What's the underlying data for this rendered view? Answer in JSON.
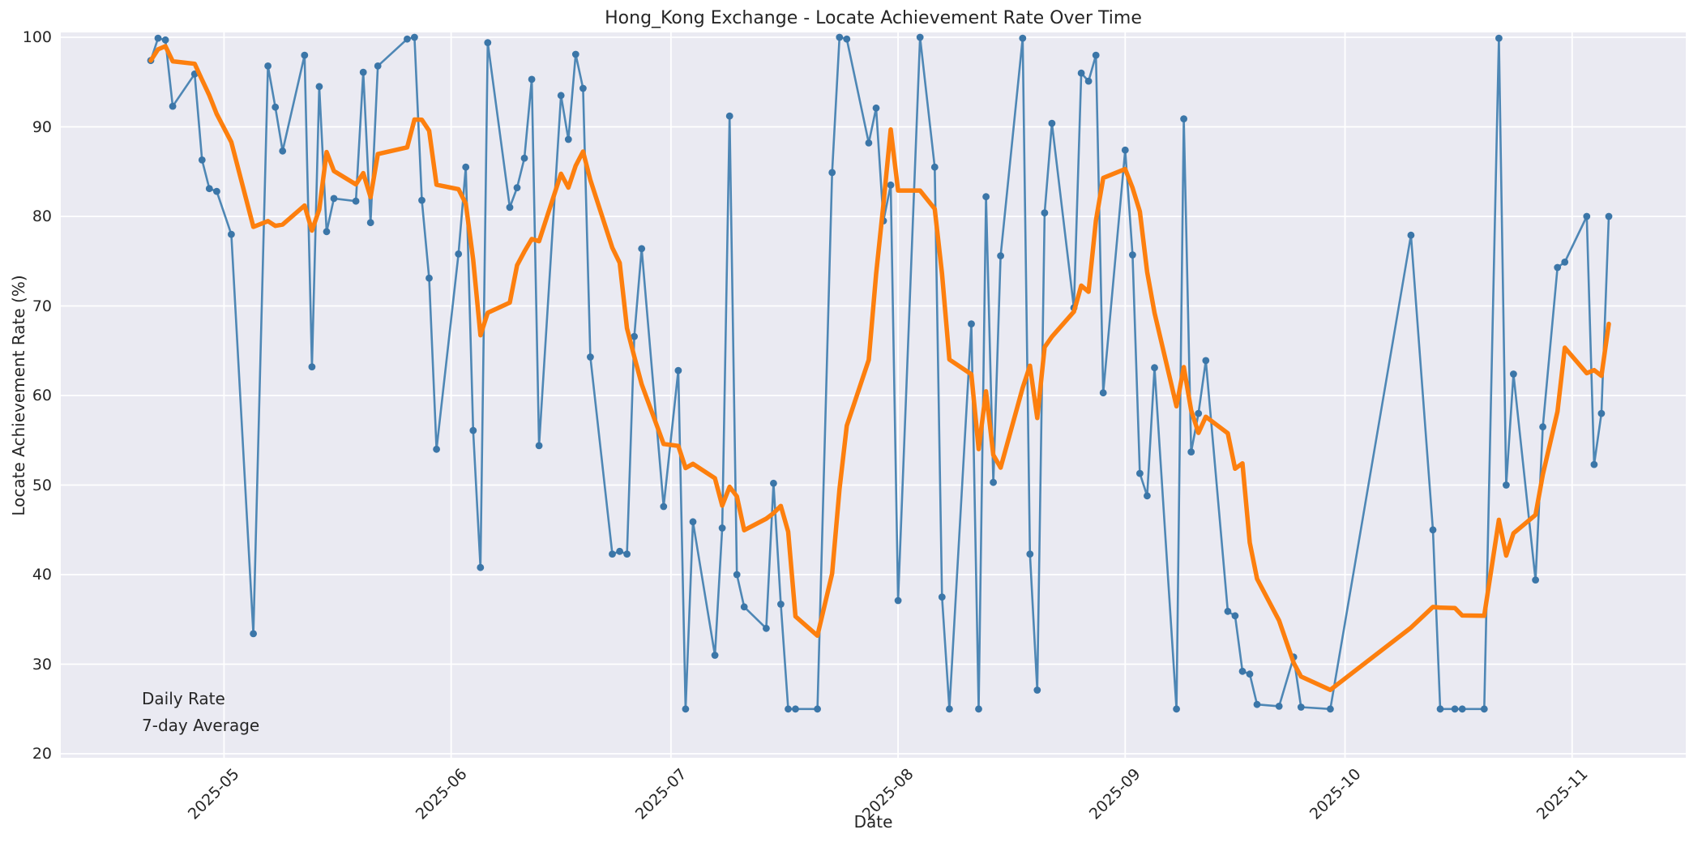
{
  "title": "Hong_Kong Exchange - Locate Achievement Rate Over Time",
  "axes": {
    "xlabel": "Date",
    "ylabel": "Locate Achievement Rate (%)",
    "ylim": [
      20,
      100
    ],
    "y_ticks": [
      20,
      30,
      40,
      50,
      60,
      70,
      80,
      90,
      100
    ],
    "x_ticks": [
      "2025-05",
      "2025-06",
      "2025-07",
      "2025-08",
      "2025-09",
      "2025-10",
      "2025-11"
    ],
    "grid": "on",
    "background": "#eaeaf2",
    "gridline_color": "#ffffff"
  },
  "legend": {
    "position": "lower left",
    "items": [
      {
        "label": "Daily Rate",
        "swatch": "line-with-dot"
      },
      {
        "label": "7-day Average",
        "swatch": "thick-line"
      }
    ]
  },
  "colors": {
    "daily_line": "#4e87b5",
    "daily_marker": "#3b76a8",
    "average_line": "#fd7f0e",
    "text": "#262626"
  },
  "chart_data": {
    "type": "line",
    "title": "Hong_Kong Exchange - Locate Achievement Rate Over Time",
    "xlabel": "Date",
    "ylabel": "Locate Achievement Rate (%)",
    "ylim": [
      20,
      100
    ],
    "x_range": [
      "2025-04-21",
      "2025-11-06"
    ],
    "legend_position": "lower left",
    "series": [
      {
        "name": "Daily Rate",
        "style": "line+markers",
        "points": [
          [
            "2025-04-21",
            97.4
          ],
          [
            "2025-04-22",
            99.9
          ],
          [
            "2025-04-23",
            99.7
          ],
          [
            "2025-04-24",
            92.3
          ],
          [
            "2025-04-27",
            95.9
          ],
          [
            "2025-04-28",
            86.3
          ],
          [
            "2025-04-29",
            83.1
          ],
          [
            "2025-04-30",
            82.8
          ],
          [
            "2025-05-02",
            78.0
          ],
          [
            "2025-05-05",
            33.4
          ],
          [
            "2025-05-07",
            96.8
          ],
          [
            "2025-05-08",
            92.2
          ],
          [
            "2025-05-09",
            87.3
          ],
          [
            "2025-05-12",
            98.0
          ],
          [
            "2025-05-13",
            63.2
          ],
          [
            "2025-05-14",
            94.5
          ],
          [
            "2025-05-15",
            78.3
          ],
          [
            "2025-05-16",
            82.0
          ],
          [
            "2025-05-19",
            81.7
          ],
          [
            "2025-05-20",
            96.1
          ],
          [
            "2025-05-21",
            79.3
          ],
          [
            "2025-05-22",
            96.8
          ],
          [
            "2025-05-26",
            99.8
          ],
          [
            "2025-05-27",
            100.0
          ],
          [
            "2025-05-28",
            81.8
          ],
          [
            "2025-05-29",
            73.1
          ],
          [
            "2025-05-30",
            54.0
          ],
          [
            "2025-06-02",
            75.8
          ],
          [
            "2025-06-03",
            85.5
          ],
          [
            "2025-06-04",
            56.1
          ],
          [
            "2025-06-05",
            40.8
          ],
          [
            "2025-06-06",
            99.4
          ],
          [
            "2025-06-09",
            81.0
          ],
          [
            "2025-06-10",
            83.2
          ],
          [
            "2025-06-11",
            86.5
          ],
          [
            "2025-06-12",
            95.3
          ],
          [
            "2025-06-13",
            54.4
          ],
          [
            "2025-06-16",
            93.5
          ],
          [
            "2025-06-17",
            88.6
          ],
          [
            "2025-06-18",
            98.1
          ],
          [
            "2025-06-19",
            94.3
          ],
          [
            "2025-06-20",
            64.3
          ],
          [
            "2025-06-23",
            42.3
          ],
          [
            "2025-06-24",
            42.6
          ],
          [
            "2025-06-25",
            42.3
          ],
          [
            "2025-06-26",
            66.6
          ],
          [
            "2025-06-27",
            76.4
          ],
          [
            "2025-06-30",
            47.6
          ],
          [
            "2025-07-02",
            62.8
          ],
          [
            "2025-07-03",
            25.0
          ],
          [
            "2025-07-04",
            45.9
          ],
          [
            "2025-07-07",
            31.0
          ],
          [
            "2025-07-08",
            45.2
          ],
          [
            "2025-07-09",
            91.2
          ],
          [
            "2025-07-10",
            40.0
          ],
          [
            "2025-07-11",
            36.4
          ],
          [
            "2025-07-14",
            34.0
          ],
          [
            "2025-07-15",
            50.2
          ],
          [
            "2025-07-16",
            36.7
          ],
          [
            "2025-07-17",
            25.0
          ],
          [
            "2025-07-18",
            25.0
          ],
          [
            "2025-07-21",
            25.0
          ],
          [
            "2025-07-23",
            84.9
          ],
          [
            "2025-07-24",
            100.0
          ],
          [
            "2025-07-25",
            99.8
          ],
          [
            "2025-07-28",
            88.2
          ],
          [
            "2025-07-29",
            92.1
          ],
          [
            "2025-07-30",
            79.5
          ],
          [
            "2025-07-31",
            83.5
          ],
          [
            "2025-08-01",
            37.1
          ],
          [
            "2025-08-04",
            100.0
          ],
          [
            "2025-08-06",
            85.5
          ],
          [
            "2025-08-07",
            37.5
          ],
          [
            "2025-08-08",
            25.0
          ],
          [
            "2025-08-11",
            68.0
          ],
          [
            "2025-08-12",
            25.0
          ],
          [
            "2025-08-13",
            82.2
          ],
          [
            "2025-08-14",
            50.3
          ],
          [
            "2025-08-15",
            75.6
          ],
          [
            "2025-08-18",
            99.9
          ],
          [
            "2025-08-19",
            42.3
          ],
          [
            "2025-08-20",
            27.1
          ],
          [
            "2025-08-21",
            80.4
          ],
          [
            "2025-08-22",
            90.4
          ],
          [
            "2025-08-25",
            69.8
          ],
          [
            "2025-08-26",
            96.0
          ],
          [
            "2025-08-27",
            95.1
          ],
          [
            "2025-08-28",
            98.0
          ],
          [
            "2025-08-29",
            60.3
          ],
          [
            "2025-09-01",
            87.4
          ],
          [
            "2025-09-02",
            75.7
          ],
          [
            "2025-09-03",
            51.3
          ],
          [
            "2025-09-04",
            48.8
          ],
          [
            "2025-09-05",
            63.1
          ],
          [
            "2025-09-08",
            25.0
          ],
          [
            "2025-09-09",
            90.9
          ],
          [
            "2025-09-10",
            53.7
          ],
          [
            "2025-09-11",
            58.0
          ],
          [
            "2025-09-12",
            63.9
          ],
          [
            "2025-09-15",
            35.9
          ],
          [
            "2025-09-16",
            35.4
          ],
          [
            "2025-09-17",
            29.2
          ],
          [
            "2025-09-18",
            28.9
          ],
          [
            "2025-09-19",
            25.5
          ],
          [
            "2025-09-22",
            25.3
          ],
          [
            "2025-09-24",
            30.8
          ],
          [
            "2025-09-25",
            25.2
          ],
          [
            "2025-09-29",
            25.0
          ],
          [
            "2025-10-10",
            77.9
          ],
          [
            "2025-10-13",
            45.0
          ],
          [
            "2025-10-14",
            25.0
          ],
          [
            "2025-10-16",
            25.0
          ],
          [
            "2025-10-17",
            25.0
          ],
          [
            "2025-10-20",
            25.0
          ],
          [
            "2025-10-22",
            99.9
          ],
          [
            "2025-10-23",
            50.0
          ],
          [
            "2025-10-24",
            62.4
          ],
          [
            "2025-10-27",
            39.4
          ],
          [
            "2025-10-28",
            56.5
          ],
          [
            "2025-10-30",
            74.3
          ],
          [
            "2025-10-31",
            74.9
          ],
          [
            "2025-11-03",
            80.0
          ],
          [
            "2025-11-04",
            52.3
          ],
          [
            "2025-11-05",
            58.0
          ],
          [
            "2025-11-06",
            80.0
          ]
        ]
      },
      {
        "name": "7-day Average",
        "style": "thick-line",
        "derived": "rolling mean of Daily Rate over last 7 observations (min_periods=1)"
      }
    ]
  }
}
